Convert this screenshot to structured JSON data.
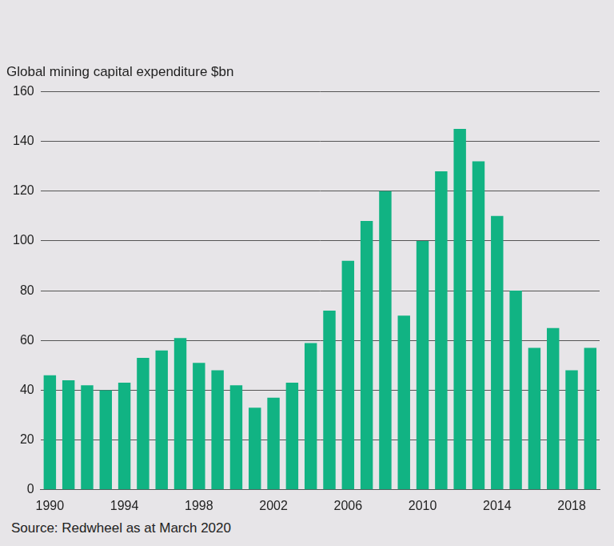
{
  "chart_data": {
    "type": "bar",
    "title": "Global mining capital expenditure $bn",
    "source": "Source: Redwheel as at March 2020",
    "categories": [
      "1990",
      null,
      null,
      null,
      "1994",
      null,
      null,
      null,
      "1998",
      null,
      null,
      null,
      "2002",
      null,
      null,
      null,
      "2006",
      null,
      null,
      null,
      "2010",
      null,
      null,
      null,
      "2014",
      null,
      null,
      null,
      "2018",
      null
    ],
    "values": [
      46,
      44,
      42,
      40,
      43,
      53,
      56,
      61,
      51,
      48,
      42,
      33,
      37,
      43,
      59,
      72,
      92,
      108,
      120,
      70,
      100,
      128,
      145,
      132,
      110,
      80,
      57,
      65,
      48,
      57
    ],
    "color": "#11b383",
    "ylim": [
      0,
      160
    ],
    "yticks": [
      0,
      20,
      40,
      60,
      80,
      100,
      120,
      140,
      160
    ],
    "grid": true,
    "data_labels": false
  }
}
